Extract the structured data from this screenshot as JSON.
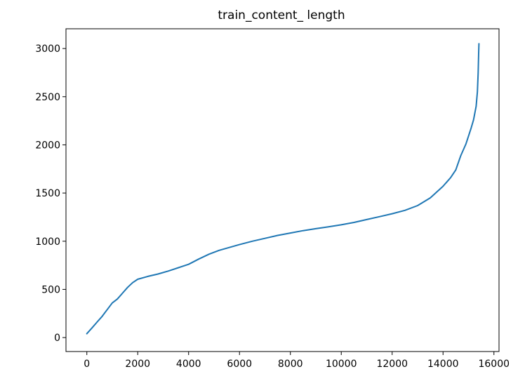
{
  "chart_data": {
    "type": "line",
    "title": "train_content_ length",
    "xlabel": "",
    "ylabel": "",
    "xlim": [
      -820,
      16200
    ],
    "ylim": [
      -145,
      3205
    ],
    "xticks": [
      0,
      2000,
      4000,
      6000,
      8000,
      10000,
      12000,
      14000,
      16000
    ],
    "yticks": [
      0,
      500,
      1000,
      1500,
      2000,
      2500,
      3000
    ],
    "xtick_labels": [
      "0",
      "2000",
      "4000",
      "6000",
      "8000",
      "10000",
      "12000",
      "14000",
      "16000"
    ],
    "ytick_labels": [
      "0",
      "500",
      "1000",
      "1500",
      "2000",
      "2500",
      "3000"
    ],
    "grid": false,
    "legend": "none",
    "series": [
      {
        "color": "#1f77b4",
        "x": [
          0,
          200,
          400,
          600,
          800,
          1000,
          1200,
          1400,
          1600,
          1800,
          2000,
          2400,
          2800,
          3200,
          3600,
          4000,
          4400,
          4800,
          5200,
          5600,
          6000,
          6500,
          7000,
          7500,
          8000,
          8500,
          9000,
          9500,
          10000,
          10500,
          11000,
          11500,
          12000,
          12500,
          13000,
          13500,
          14000,
          14300,
          14500,
          14700,
          14900,
          15100,
          15200,
          15300,
          15350,
          15380,
          15400,
          15410
        ],
        "y": [
          40,
          100,
          160,
          220,
          290,
          360,
          400,
          460,
          520,
          570,
          605,
          635,
          660,
          690,
          725,
          760,
          815,
          865,
          905,
          935,
          965,
          1000,
          1030,
          1060,
          1085,
          1110,
          1130,
          1150,
          1170,
          1195,
          1225,
          1255,
          1285,
          1320,
          1370,
          1450,
          1570,
          1660,
          1740,
          1890,
          2010,
          2170,
          2260,
          2400,
          2550,
          2750,
          2950,
          3050
        ]
      }
    ]
  }
}
